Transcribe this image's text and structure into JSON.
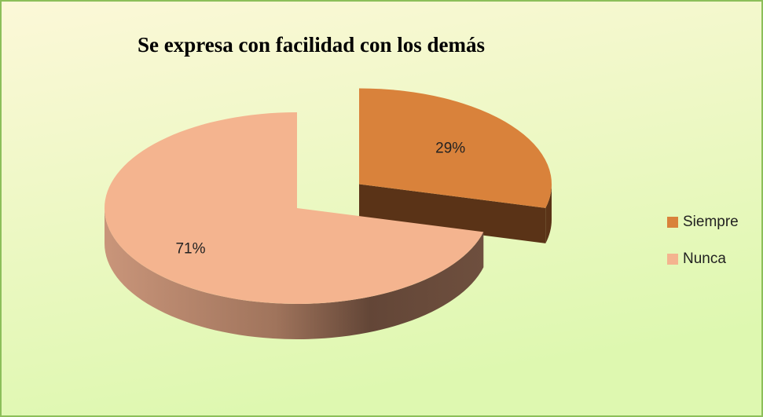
{
  "chart_data": {
    "type": "pie",
    "title": "Se expresa con facilidad con los demás",
    "categories": [
      "Siempre",
      "Nunca"
    ],
    "values": [
      29,
      71
    ],
    "value_labels": [
      "29%",
      "71%"
    ],
    "colors": [
      "#d9823b",
      "#f4b48f"
    ],
    "legend": "right"
  }
}
